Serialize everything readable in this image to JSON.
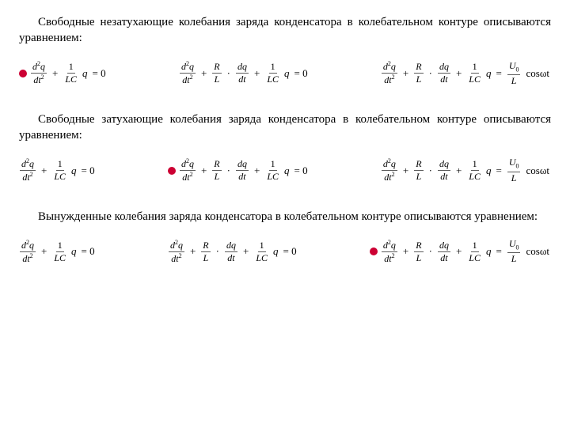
{
  "colors": {
    "text": "#000000",
    "bg": "#ffffff",
    "bullet": "#cc0033",
    "fracline": "#5a5a5a"
  },
  "paragraphs": {
    "p1": "Свободные незатухающие колебания заряда конденсатора в колебательном контуре описываются уравнением:",
    "p2": "Свободные затухающие колебания заряда конденсатора в колебательном контуре описываются уравнением:",
    "p3": "Вынужденные колебания заряда конденсатора в колебательном контуре описываются уравнением:"
  },
  "rows": [
    {
      "correct": 0
    },
    {
      "correct": 1
    },
    {
      "correct": 2
    }
  ],
  "equations": {
    "eq1_rhs": "= 0",
    "eq2_rhs": "= 0",
    "cos": "cosωt",
    "d2q": "d",
    "q": "q",
    "dt2_t": "dt",
    "dq": "dq",
    "dt": "dt",
    "one": "1",
    "LC": "LC",
    "R": "R",
    "L": "L",
    "U0": "U",
    "zero_sub": "0",
    "two_sup": "2"
  }
}
